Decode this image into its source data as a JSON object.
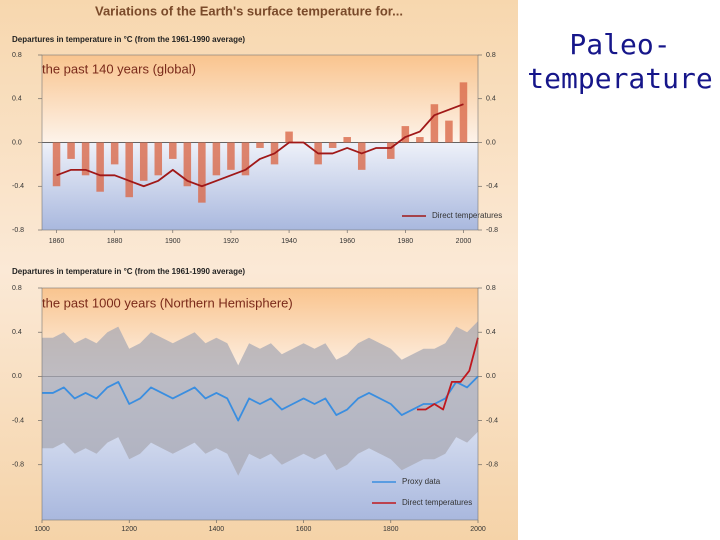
{
  "slide_title": "Paleo-temperature",
  "chart_data": [
    {
      "type": "line",
      "title": "Variations of the Earth's surface temperature for...",
      "ylabel": "Departures in temperature in °C (from the 1961-1990 average)",
      "subtitle": "the past 140 years (global)",
      "xlim": [
        1855,
        2005
      ],
      "xticks": [
        1860,
        1880,
        1900,
        1920,
        1940,
        1960,
        1980,
        2000
      ],
      "ylim": [
        -0.8,
        0.8
      ],
      "yticks": [
        {
          "value": -0.8,
          "label": "-0.8"
        },
        {
          "value": -0.4,
          "label": "-0.4"
        },
        {
          "value": 0,
          "label": "0.0"
        },
        {
          "value": 0.4,
          "label": "0.4"
        },
        {
          "value": 0.8,
          "label": "0.8"
        }
      ],
      "series": [
        {
          "type": "bar",
          "color": "#d9694a",
          "x": [
            1860,
            1865,
            1870,
            1875,
            1880,
            1885,
            1890,
            1895,
            1900,
            1905,
            1910,
            1915,
            1920,
            1925,
            1930,
            1935,
            1940,
            1945,
            1950,
            1955,
            1960,
            1965,
            1970,
            1975,
            1980,
            1985,
            1990,
            1995,
            2000
          ],
          "values": [
            -0.4,
            -0.15,
            -0.3,
            -0.45,
            -0.2,
            -0.5,
            -0.35,
            -0.3,
            -0.15,
            -0.4,
            -0.55,
            -0.3,
            -0.25,
            -0.3,
            -0.05,
            -0.2,
            0.1,
            0.0,
            -0.2,
            -0.05,
            0.05,
            -0.25,
            0.0,
            -0.15,
            0.15,
            0.05,
            0.35,
            0.2,
            0.55
          ]
        },
        {
          "type": "line",
          "name": "Direct temperatures",
          "color": "#a01818",
          "x": [
            1860,
            1865,
            1870,
            1875,
            1880,
            1885,
            1890,
            1895,
            1900,
            1905,
            1910,
            1915,
            1920,
            1925,
            1930,
            1935,
            1940,
            1945,
            1950,
            1955,
            1960,
            1965,
            1970,
            1975,
            1980,
            1985,
            1990,
            1995,
            2000
          ],
          "values": [
            -0.3,
            -0.25,
            -0.25,
            -0.3,
            -0.3,
            -0.35,
            -0.4,
            -0.35,
            -0.25,
            -0.35,
            -0.4,
            -0.35,
            -0.3,
            -0.25,
            -0.15,
            -0.1,
            0.0,
            0.0,
            -0.1,
            -0.1,
            -0.05,
            -0.1,
            -0.05,
            -0.05,
            0.05,
            0.1,
            0.25,
            0.3,
            0.35
          ]
        }
      ]
    },
    {
      "type": "line",
      "ylabel": "Departures in temperature in °C (from the 1961-1990 average)",
      "subtitle": "the past 1000 years (Northern Hemisphere)",
      "xlim": [
        1000,
        2000
      ],
      "xticks": [
        1000,
        1200,
        1400,
        1600,
        1800,
        2000
      ],
      "ylim": [
        -1.3,
        0.8
      ],
      "yticks": [
        {
          "value": -0.8,
          "label": "-0.8"
        },
        {
          "value": -0.4,
          "label": "-0.4"
        },
        {
          "value": 0,
          "label": "0.0"
        },
        {
          "value": 0.4,
          "label": "0.4"
        },
        {
          "value": 0.8,
          "label": "0.8"
        }
      ],
      "series": [
        {
          "type": "band",
          "color": "#a9a9b4",
          "x": [
            1000,
            1025,
            1050,
            1075,
            1100,
            1125,
            1150,
            1175,
            1200,
            1225,
            1250,
            1275,
            1300,
            1325,
            1350,
            1375,
            1400,
            1425,
            1450,
            1475,
            1500,
            1525,
            1550,
            1575,
            1600,
            1625,
            1650,
            1675,
            1700,
            1725,
            1750,
            1775,
            1800,
            1825,
            1850,
            1875,
            1900,
            1925,
            1950,
            1975,
            2000
          ],
          "values": [
            0.35,
            0.35,
            0.4,
            0.3,
            0.35,
            0.3,
            0.4,
            0.45,
            0.25,
            0.3,
            0.4,
            0.35,
            0.3,
            0.35,
            0.4,
            0.3,
            0.35,
            0.3,
            0.1,
            0.3,
            0.25,
            0.3,
            0.2,
            0.25,
            0.3,
            0.25,
            0.3,
            0.15,
            0.2,
            0.3,
            0.35,
            0.3,
            0.25,
            0.15,
            0.2,
            0.25,
            0.25,
            0.3,
            0.45,
            0.4,
            0.5
          ],
          "lower": [
            -0.65,
            -0.65,
            -0.6,
            -0.7,
            -0.65,
            -0.7,
            -0.6,
            -0.55,
            -0.75,
            -0.7,
            -0.6,
            -0.65,
            -0.7,
            -0.65,
            -0.6,
            -0.7,
            -0.65,
            -0.7,
            -0.9,
            -0.7,
            -0.75,
            -0.7,
            -0.8,
            -0.75,
            -0.7,
            -0.75,
            -0.7,
            -0.85,
            -0.8,
            -0.7,
            -0.65,
            -0.7,
            -0.75,
            -0.85,
            -0.8,
            -0.75,
            -0.75,
            -0.7,
            -0.55,
            -0.6,
            -0.5
          ]
        },
        {
          "type": "line",
          "name": "Proxy data",
          "color": "#3a8ee0",
          "x": [
            1000,
            1025,
            1050,
            1075,
            1100,
            1125,
            1150,
            1175,
            1200,
            1225,
            1250,
            1275,
            1300,
            1325,
            1350,
            1375,
            1400,
            1425,
            1450,
            1475,
            1500,
            1525,
            1550,
            1575,
            1600,
            1625,
            1650,
            1675,
            1700,
            1725,
            1750,
            1775,
            1800,
            1825,
            1850,
            1875,
            1900,
            1925,
            1950,
            1975,
            2000
          ],
          "values": [
            -0.15,
            -0.15,
            -0.1,
            -0.2,
            -0.15,
            -0.2,
            -0.1,
            -0.05,
            -0.25,
            -0.2,
            -0.1,
            -0.15,
            -0.2,
            -0.15,
            -0.1,
            -0.2,
            -0.15,
            -0.2,
            -0.4,
            -0.2,
            -0.25,
            -0.2,
            -0.3,
            -0.25,
            -0.2,
            -0.25,
            -0.2,
            -0.35,
            -0.3,
            -0.2,
            -0.15,
            -0.2,
            -0.25,
            -0.35,
            -0.3,
            -0.25,
            -0.25,
            -0.2,
            -0.05,
            -0.1,
            0.0
          ]
        },
        {
          "type": "line",
          "name": "Direct temperatures",
          "color": "#c0181e",
          "x": [
            1860,
            1880,
            1900,
            1920,
            1940,
            1960,
            1980,
            2000
          ],
          "values": [
            -0.3,
            -0.3,
            -0.25,
            -0.3,
            -0.05,
            -0.05,
            0.05,
            0.35
          ]
        }
      ]
    }
  ]
}
